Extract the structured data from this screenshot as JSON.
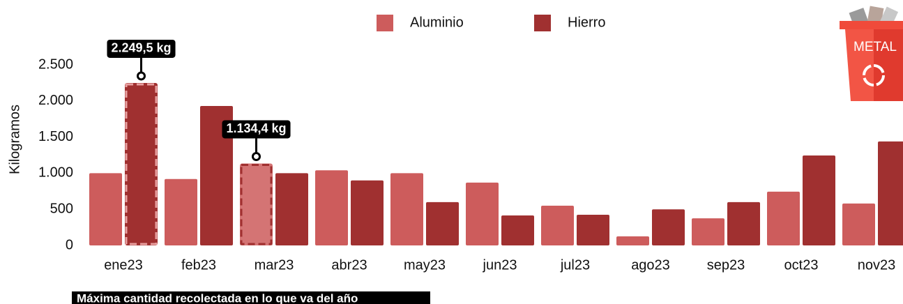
{
  "chart_data": {
    "type": "bar",
    "y_label": "Kilogramos",
    "categories": [
      "ene23",
      "feb23",
      "mar23",
      "abr23",
      "may23",
      "jun23",
      "jul23",
      "ago23",
      "sep23",
      "oct23",
      "nov23"
    ],
    "series": [
      {
        "name": "Aluminio",
        "color": "#cd5c5c",
        "values": [
          1000,
          920,
          1134.4,
          1040,
          1000,
          870,
          550,
          125,
          375,
          745,
          580
        ],
        "value_labels": [
          null,
          null,
          "1.134,4 kg",
          null,
          null,
          null,
          null,
          null,
          null,
          null,
          null
        ]
      },
      {
        "name": "Hierro",
        "color": "#a03030",
        "values": [
          2249.5,
          1930,
          1000,
          900,
          600,
          415,
          425,
          500,
          600,
          1245,
          1440
        ],
        "value_labels": [
          "2.249,5 kg",
          null,
          null,
          null,
          null,
          null,
          null,
          null,
          null,
          null,
          null
        ]
      }
    ],
    "ylim": [
      0,
      2500
    ],
    "yticks": [
      0,
      500,
      {
        "value": 1000,
        "label": "1.000"
      },
      {
        "value": 1500,
        "label": "1.500"
      },
      {
        "value": 2000,
        "label": "2.000"
      },
      {
        "value": 2500,
        "label": "2.500"
      }
    ],
    "grid": false,
    "legend": "top",
    "footnote": "Máxima cantidad recolectada en lo que va del año",
    "badge": "METAL"
  }
}
